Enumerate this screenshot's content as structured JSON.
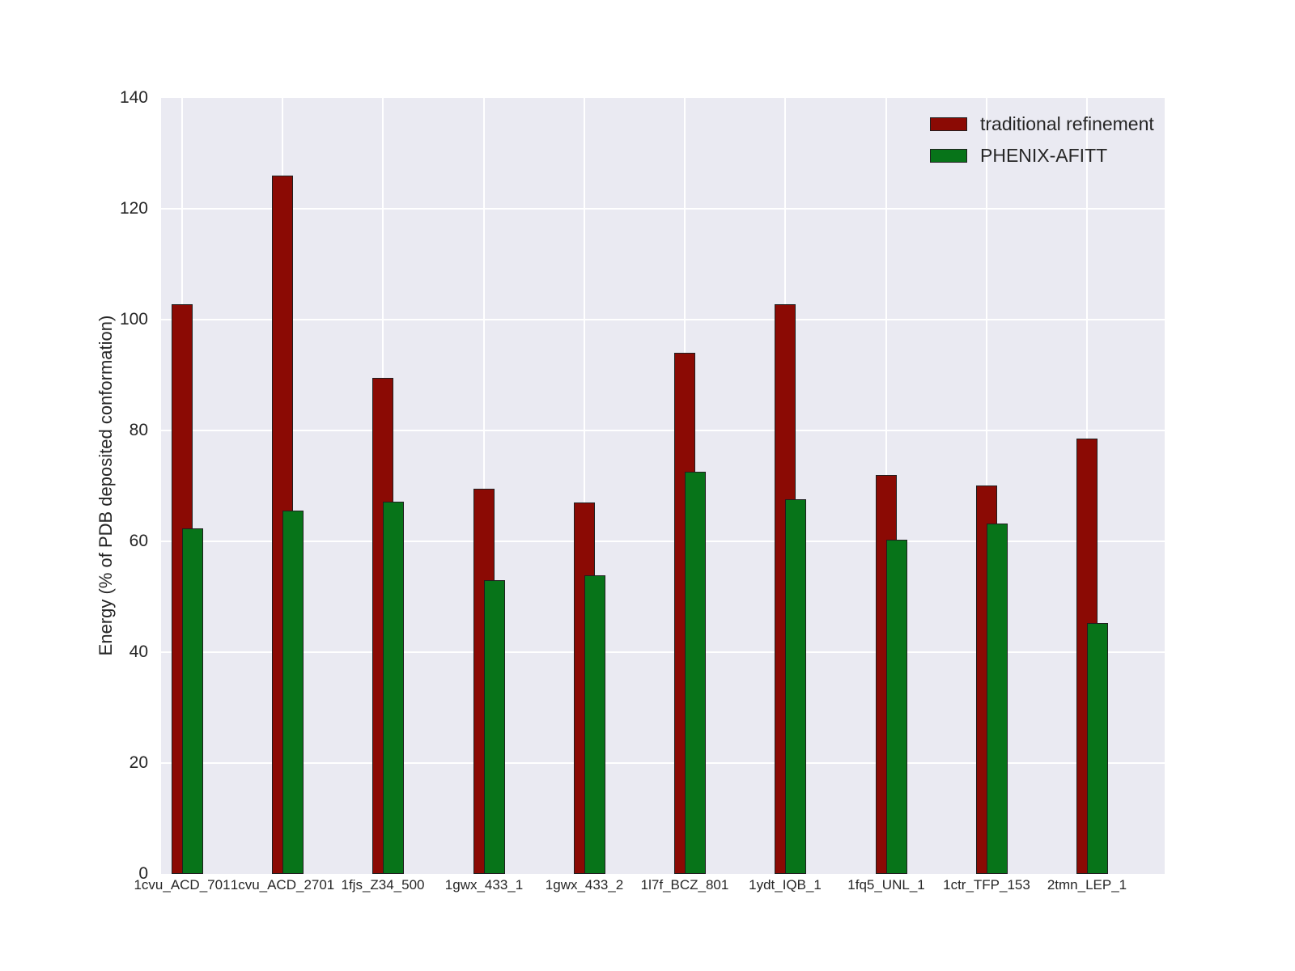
{
  "chart_data": {
    "type": "bar",
    "title": "",
    "xlabel": "",
    "ylabel": "Energy (% of PDB deposited conformation)",
    "ylim": [
      0,
      140
    ],
    "yticks": [
      0,
      20,
      40,
      60,
      80,
      100,
      120,
      140
    ],
    "grid": true,
    "legend_position": "upper right",
    "legend_frame": false,
    "categories": [
      "1cvu_ACD_701",
      "1cvu_ACD_2701",
      "1fjs_Z34_500",
      "1gwx_433_1",
      "1gwx_433_2",
      "1l7f_BCZ_801",
      "1ydt_IQB_1",
      "1fq5_UNL_1",
      "1ctr_TFP_153",
      "2tmn_LEP_1"
    ],
    "series": [
      {
        "name": "traditional refinement",
        "color": "#8b0a04",
        "values": [
          102.8,
          126.0,
          89.5,
          69.5,
          67.0,
          94.0,
          102.8,
          72.0,
          70.0,
          78.5
        ]
      },
      {
        "name": "PHENIX-AFITT",
        "color": "#077419",
        "values": [
          62.4,
          65.5,
          67.2,
          53.0,
          53.8,
          72.6,
          67.6,
          60.3,
          63.2,
          45.3
        ]
      }
    ],
    "colors": {
      "figure_bg": "#ffffff",
      "plot_bg": "#eaeaf2",
      "grid": "#ffffff",
      "bar_edge": "#1f1f1f",
      "text": "#262626"
    }
  }
}
